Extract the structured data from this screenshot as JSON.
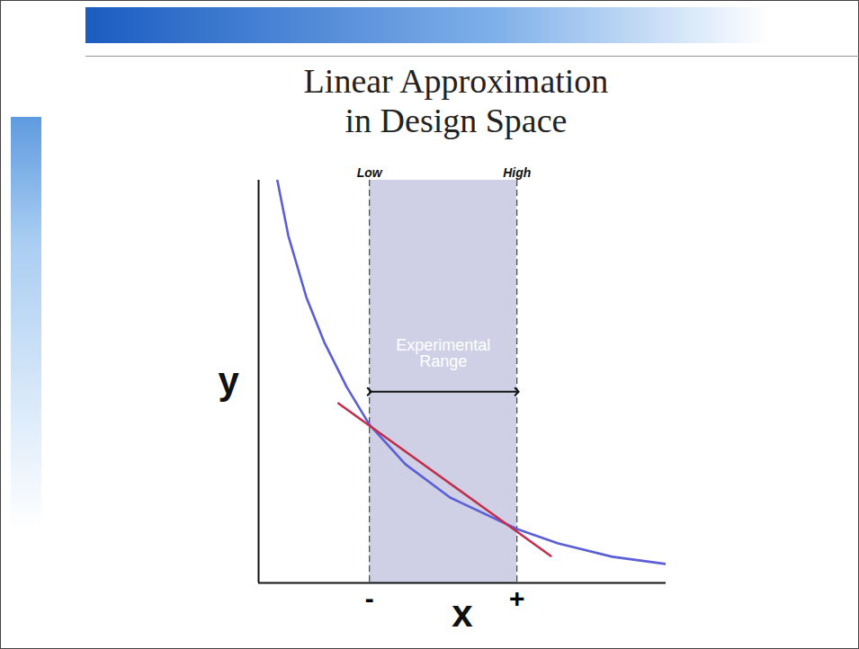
{
  "chart_data": {
    "type": "line",
    "title": "Linear Approximation in Design Space",
    "x_label": "x",
    "y_label": "y",
    "xlim": [
      0,
      100
    ],
    "ylim": [
      0,
      100
    ],
    "xticks": [
      {
        "value": 27.2,
        "label": "-"
      },
      {
        "value": 63.4,
        "label": "+"
      }
    ],
    "yticks": [],
    "tick_labels": "x",
    "grid": false,
    "series": [
      {
        "color": "#5b5fd6",
        "x": [
          4.6,
          7.3,
          11.7,
          16.1,
          21.6,
          27.2,
          36.0,
          47.0,
          63.4,
          73.5,
          86.8,
          100
        ],
        "values": [
          100,
          86.2,
          71.0,
          59.8,
          48.7,
          39.3,
          29.5,
          21.2,
          13.4,
          9.8,
          6.5,
          4.7
        ]
      },
      {
        "color": "#c0304e",
        "x": [
          19.6,
          71.7
        ],
        "values": [
          44.6,
          6.7
        ]
      }
    ],
    "region": {
      "x": [
        27.2,
        63.4
      ],
      "labels": [
        "Low",
        "High"
      ],
      "text": "Experimental Range",
      "color": "#cfd0e6"
    }
  }
}
